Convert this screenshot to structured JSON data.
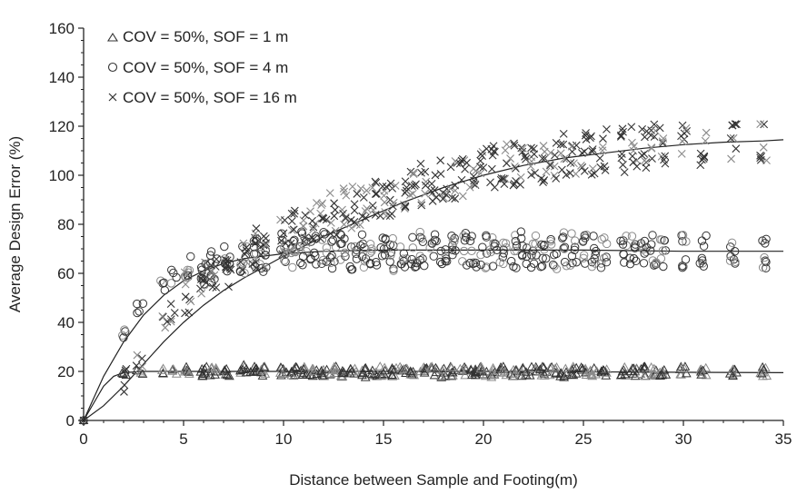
{
  "chart_data": {
    "type": "scatter",
    "title": "",
    "xlabel": "Distance between Sample and Footing(m)",
    "ylabel": "Average Design Error (%)",
    "xlim": [
      0,
      35
    ],
    "ylim": [
      0,
      160
    ],
    "xticks": [
      0,
      5,
      10,
      15,
      20,
      25,
      30,
      35
    ],
    "yticks": [
      0,
      20,
      40,
      60,
      80,
      100,
      120,
      140,
      160
    ],
    "grid": false,
    "legend_placement": "top-left",
    "colors": {
      "axis": "#222222",
      "marker": "#333333",
      "marker_light": "#8a8a8a",
      "curve": "#222222"
    },
    "series": [
      {
        "name": "COV = 50%, SOF = 1 m",
        "marker": "triangle",
        "spread": 4,
        "x": [
          0,
          2,
          2.8,
          4,
          4.5,
          5.2,
          6,
          6.5,
          7.2,
          8,
          8.5,
          9,
          10,
          10.5,
          11,
          11.5,
          12,
          12.5,
          13,
          13.5,
          14,
          14.5,
          15,
          15.5,
          16,
          16.5,
          17,
          17.5,
          18,
          18.5,
          19,
          19.5,
          20,
          20.5,
          21,
          21.5,
          22,
          22.5,
          23,
          23.5,
          24,
          24.5,
          25,
          25.5,
          26,
          27,
          27.5,
          28,
          28.5,
          29,
          30,
          31,
          32.5,
          34
        ],
        "y": [
          0,
          19.5,
          20,
          20,
          20,
          20,
          20,
          20,
          20,
          21,
          20,
          20,
          20,
          20,
          20,
          19.5,
          20,
          20,
          19.5,
          20,
          19.5,
          20,
          20,
          19.5,
          20,
          20,
          20,
          20,
          19.5,
          20,
          20,
          20,
          20,
          19.5,
          20,
          20,
          20,
          20,
          20,
          20,
          19.5,
          20,
          20,
          20,
          19.5,
          20,
          20,
          20,
          20,
          20,
          20,
          19.5,
          20,
          20
        ]
      },
      {
        "name": "COV = 50%, SOF = 4 m",
        "marker": "circle",
        "spread": 14,
        "x": [
          0,
          2,
          2.8,
          4,
          4.5,
          5.2,
          6,
          6.5,
          7.2,
          8,
          8.5,
          9,
          10,
          10.5,
          11,
          11.5,
          12,
          12.5,
          13,
          13.5,
          14,
          14.5,
          15,
          15.5,
          16,
          16.5,
          17,
          17.5,
          18,
          18.5,
          19,
          19.5,
          20,
          20.5,
          21,
          21.5,
          22,
          22.5,
          23,
          23.5,
          24,
          24.5,
          25,
          25.5,
          26,
          27,
          27.5,
          28,
          28.5,
          29,
          30,
          31,
          32.5,
          34
        ],
        "y": [
          0,
          37,
          45,
          56,
          59,
          60,
          61,
          63,
          64,
          67,
          68,
          67,
          70,
          69,
          70,
          69,
          70,
          69,
          70,
          68,
          69,
          69,
          70,
          68,
          69,
          69,
          70,
          69,
          69,
          69,
          70,
          69,
          69,
          68,
          69,
          69,
          70,
          69,
          69,
          68,
          70,
          70,
          69,
          69,
          69,
          69,
          70,
          68,
          69,
          69,
          69,
          69,
          70,
          69
        ]
      },
      {
        "name": "COV = 50%, SOF = 16 m",
        "marker": "cross",
        "spread": 18,
        "x": [
          0,
          2,
          2.8,
          4,
          4.5,
          5.2,
          6,
          6.5,
          7.2,
          8,
          8.5,
          9,
          10,
          10.5,
          11,
          11.5,
          12,
          12.5,
          13,
          13.5,
          14,
          14.5,
          15,
          15.5,
          16,
          16.5,
          17,
          17.5,
          18,
          18.5,
          19,
          19.5,
          20,
          20.5,
          21,
          21.5,
          22,
          22.5,
          23,
          23.5,
          24,
          24.5,
          25,
          25.5,
          26,
          27,
          27.5,
          28,
          28.5,
          29,
          30,
          31,
          32.5,
          34
        ],
        "y": [
          0,
          17,
          24,
          40,
          45,
          52,
          58,
          60,
          63,
          68,
          70,
          71,
          76,
          77,
          78,
          80,
          82,
          84,
          86,
          87,
          88,
          89,
          91,
          92,
          93,
          95,
          96,
          97,
          98,
          99,
          100,
          101,
          102,
          103,
          104,
          104,
          105,
          106,
          106,
          107,
          108,
          108,
          109,
          109,
          110,
          110,
          111,
          111,
          112,
          112,
          113,
          113,
          114,
          115
        ]
      }
    ],
    "fitted_curves": [
      {
        "name": "SOF = 1 m fit",
        "x": [
          0,
          1,
          1.5,
          2,
          3,
          5,
          10,
          20,
          35
        ],
        "y": [
          0,
          14,
          18,
          19.5,
          20,
          20,
          20,
          20,
          19.5
        ]
      },
      {
        "name": "SOF = 4 m fit",
        "x": [
          0,
          1,
          2,
          3,
          4,
          5,
          6,
          7,
          8,
          10,
          12,
          15,
          20,
          25,
          30,
          35
        ],
        "y": [
          0,
          18,
          32,
          43,
          51,
          57,
          61,
          64,
          66,
          68,
          69,
          69.5,
          69.5,
          69.5,
          69,
          69
        ]
      },
      {
        "name": "SOF = 16 m fit",
        "x": [
          0,
          1,
          2,
          3,
          4,
          5,
          6,
          7,
          8,
          10,
          12,
          14,
          16,
          18,
          20,
          22,
          24,
          26,
          28,
          30,
          32,
          34,
          35
        ],
        "y": [
          0,
          6,
          14,
          23,
          32,
          40,
          47,
          53,
          58,
          67,
          75,
          82,
          89,
          95,
          100,
          104,
          107,
          109,
          111,
          112.5,
          113.5,
          114,
          114.5
        ]
      }
    ]
  }
}
